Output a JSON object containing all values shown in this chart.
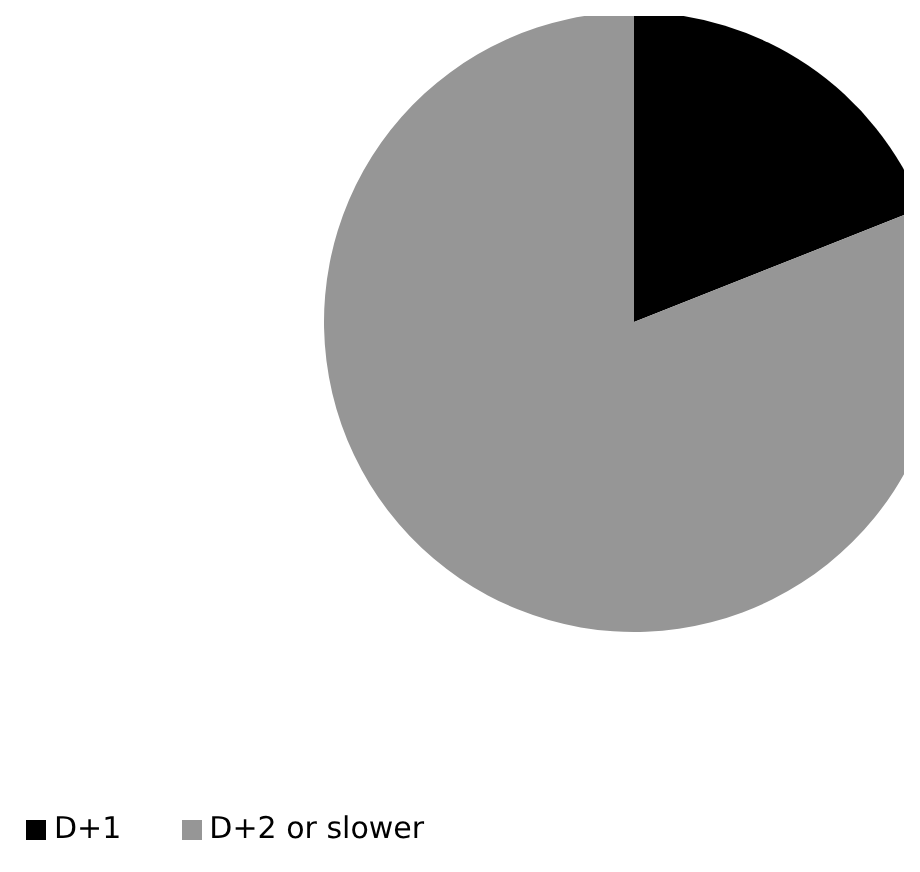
{
  "chart_data": {
    "type": "pie",
    "categories": [
      "D+1",
      "D+2 or slower"
    ],
    "values": [
      19,
      81
    ],
    "colors": [
      "#000000",
      "#969696"
    ],
    "legend": "bottom left"
  }
}
